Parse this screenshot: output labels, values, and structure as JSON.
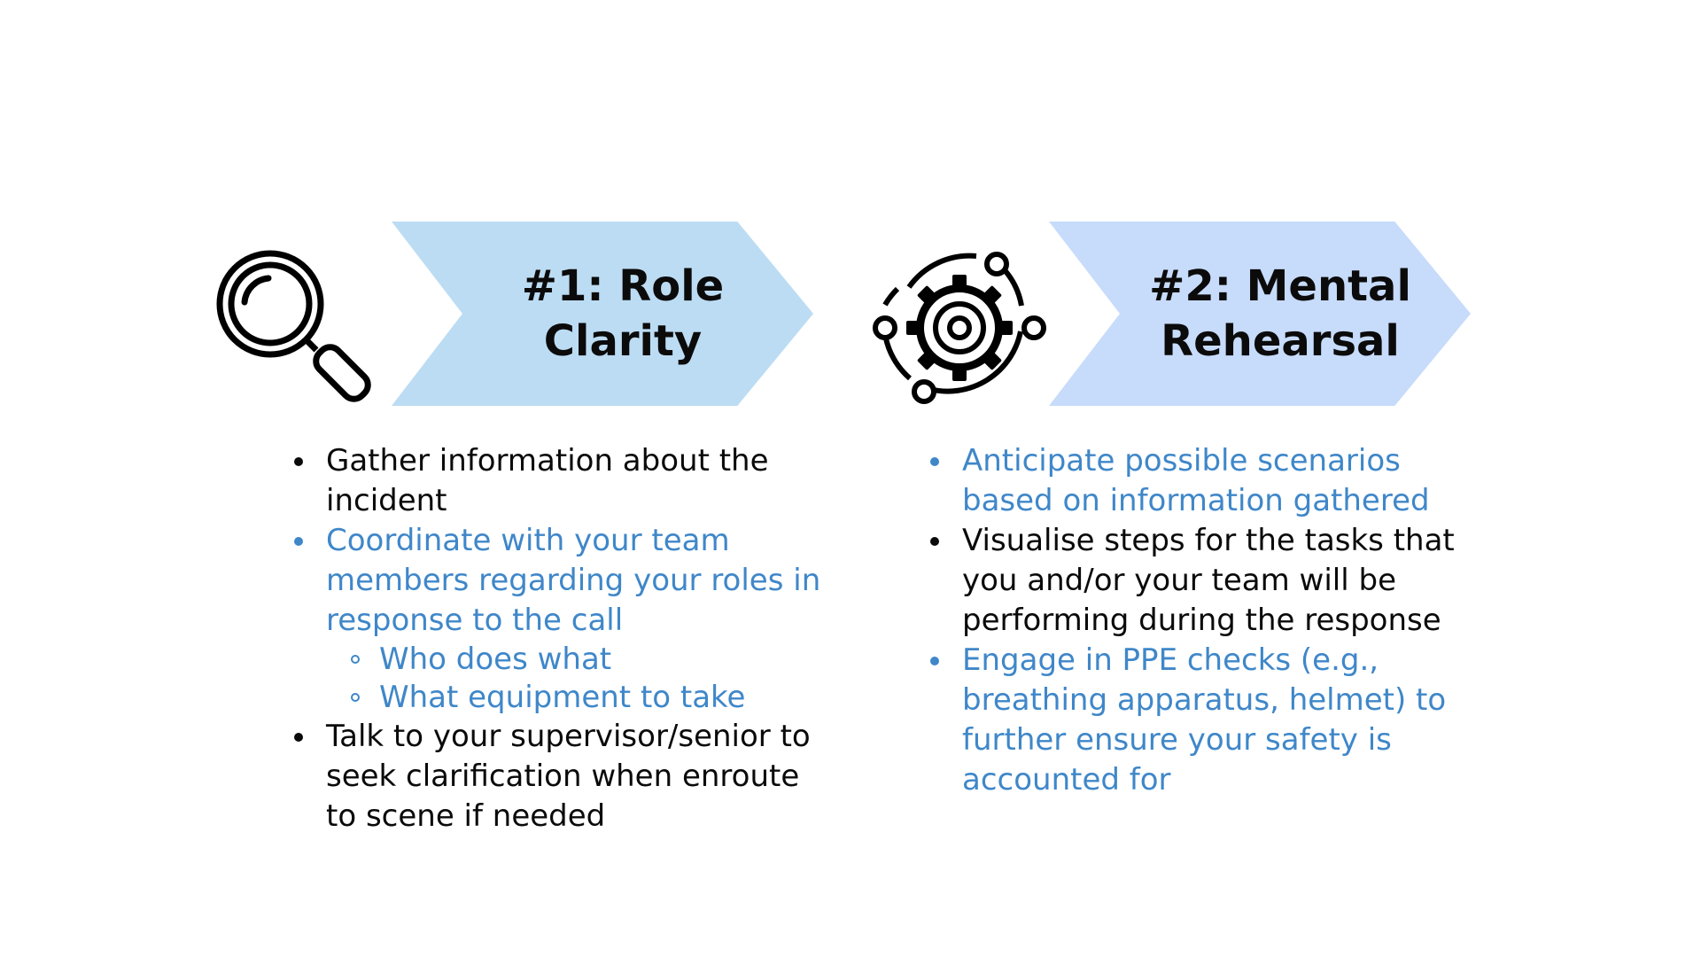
{
  "colors": {
    "chevron_1": "#bcdcf3",
    "chevron_2": "#c7dbfb",
    "accent_blue": "#3f87c9",
    "text_dark": "#0a0a0a"
  },
  "cards": [
    {
      "icon": "magnifier-icon",
      "title_line1": "#1: Role",
      "title_line2": "Clarity",
      "points": [
        {
          "text": "Gather information about the incident"
        },
        {
          "text": "Coordinate with your team members regarding your roles in response to the call"
        },
        {
          "text": "Talk to your supervisor/senior to seek clarification when enroute to scene if needed"
        }
      ],
      "subpoints": [
        {
          "text": "Who does what"
        },
        {
          "text": "What equipment to take"
        }
      ]
    },
    {
      "icon": "gear-orbit-icon",
      "title_line1": "#2: Mental",
      "title_line2": "Rehearsal",
      "points": [
        {
          "text": "Anticipate possible scenarios based on information gathered"
        },
        {
          "text": "Visualise steps for the tasks that you and/or your team will be performing during the response"
        },
        {
          "text": "Engage in PPE checks (e.g., breathing apparatus, helmet) to further ensure your safety is accounted for"
        }
      ]
    }
  ]
}
